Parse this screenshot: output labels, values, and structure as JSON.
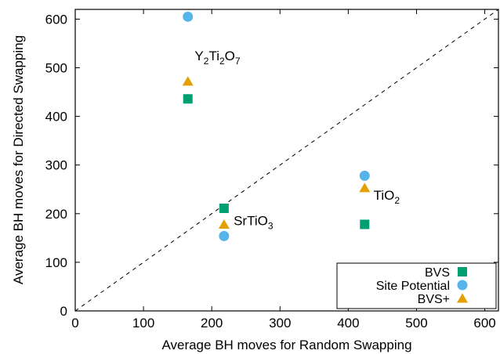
{
  "chart_data": {
    "type": "scatter",
    "xlabel": "Average BH moves for Random Swapping",
    "ylabel": "Average BH moves for Directed Swapping",
    "xlim": [
      0,
      620
    ],
    "ylim": [
      0,
      620
    ],
    "xticks": [
      0,
      100,
      200,
      300,
      400,
      500,
      600
    ],
    "yticks": [
      0,
      100,
      200,
      300,
      400,
      500,
      600
    ],
    "xtick_labels": [
      "0",
      "100",
      "200",
      "300",
      "400",
      "500",
      "600"
    ],
    "ytick_labels": [
      "0",
      "100",
      "200",
      "300",
      "400",
      "500",
      "600"
    ],
    "grid": false,
    "diagonal": "y = x (dashed)",
    "legend_position": "bottom-right",
    "series": [
      {
        "name": "BVS",
        "marker": "square",
        "color": "#009E73",
        "points": [
          {
            "x": 165,
            "y": 436
          },
          {
            "x": 218,
            "y": 211
          },
          {
            "x": 424,
            "y": 178
          }
        ]
      },
      {
        "name": "Site Potential",
        "marker": "circle",
        "color": "#56B4E9",
        "points": [
          {
            "x": 165,
            "y": 605
          },
          {
            "x": 218,
            "y": 154
          },
          {
            "x": 424,
            "y": 278
          }
        ]
      },
      {
        "name": "BVS+",
        "marker": "triangle",
        "color": "#E69F00",
        "points": [
          {
            "x": 165,
            "y": 472
          },
          {
            "x": 218,
            "y": 178
          },
          {
            "x": 424,
            "y": 253
          }
        ]
      }
    ],
    "annotations": [
      {
        "id": "y2ti2o7",
        "x": 175,
        "y": 515,
        "parts": [
          [
            "Y",
            false
          ],
          [
            "2",
            true
          ],
          [
            "Ti",
            false
          ],
          [
            "2",
            true
          ],
          [
            "O",
            false
          ],
          [
            "7",
            true
          ]
        ]
      },
      {
        "id": "srtio3",
        "x": 232,
        "y": 176,
        "parts": [
          [
            "SrTiO",
            false
          ],
          [
            "3",
            true
          ]
        ]
      },
      {
        "id": "tio2",
        "x": 437,
        "y": 229,
        "parts": [
          [
            "TiO",
            false
          ],
          [
            "2",
            true
          ]
        ]
      }
    ]
  }
}
